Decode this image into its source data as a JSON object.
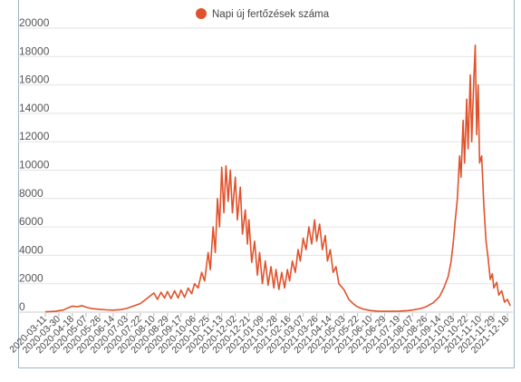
{
  "chart_data": {
    "type": "line",
    "legend": {
      "label": "Napi új fertőzések száma",
      "placement": "top-center"
    },
    "colors": {
      "series": "#e0522c",
      "grid": "#e3e3e3",
      "axis": "#cccccc"
    },
    "ylim": [
      0,
      20000
    ],
    "yticks": [
      0,
      2000,
      4000,
      6000,
      8000,
      10000,
      12000,
      14000,
      16000,
      18000,
      20000
    ],
    "yticks_labels": [
      "0",
      "2000",
      "4000",
      "6000",
      "8000",
      "10000",
      "12000",
      "14000",
      "16000",
      "18000",
      "20000"
    ],
    "grid": true,
    "xticks": [
      "2020-03-11",
      "2020-03-30",
      "2020-04-18",
      "2020-05-07",
      "2020-05-26",
      "2020-06-14",
      "2020-07-03",
      "2020-07-22",
      "2020-08-10",
      "2020-08-29",
      "2020-09-17",
      "2020-10-06",
      "2020-10-25",
      "2020-11-13",
      "2020-12-02",
      "2020-12-21",
      "2021-01-09",
      "2021-01-28",
      "2021-02-16",
      "2021-03-07",
      "2021-03-26",
      "2021-04-14",
      "2021-05-03",
      "2021-05-22",
      "2021-06-10",
      "2021-06-29",
      "2021-07-19",
      "2021-08-07",
      "2021-08-26",
      "2021-09-14",
      "2021-10-03",
      "2021-10-22",
      "2021-11-10",
      "2021-11-29",
      "2021-12-18"
    ],
    "series": [
      {
        "name": "Napi új fertőzések száma",
        "points": [
          [
            "2020-03-11",
            20
          ],
          [
            "2020-03-25",
            60
          ],
          [
            "2020-04-05",
            150
          ],
          [
            "2020-04-12",
            300
          ],
          [
            "2020-04-18",
            420
          ],
          [
            "2020-04-25",
            380
          ],
          [
            "2020-05-01",
            460
          ],
          [
            "2020-05-07",
            350
          ],
          [
            "2020-05-15",
            250
          ],
          [
            "2020-05-26",
            200
          ],
          [
            "2020-06-05",
            160
          ],
          [
            "2020-06-14",
            140
          ],
          [
            "2020-06-25",
            180
          ],
          [
            "2020-07-03",
            260
          ],
          [
            "2020-07-12",
            420
          ],
          [
            "2020-07-22",
            600
          ],
          [
            "2020-07-30",
            900
          ],
          [
            "2020-08-05",
            1150
          ],
          [
            "2020-08-10",
            1350
          ],
          [
            "2020-08-15",
            900
          ],
          [
            "2020-08-20",
            1400
          ],
          [
            "2020-08-25",
            1000
          ],
          [
            "2020-08-29",
            1450
          ],
          [
            "2020-09-03",
            950
          ],
          [
            "2020-09-08",
            1500
          ],
          [
            "2020-09-13",
            1000
          ],
          [
            "2020-09-17",
            1550
          ],
          [
            "2020-09-22",
            1050
          ],
          [
            "2020-09-27",
            1700
          ],
          [
            "2020-10-02",
            1300
          ],
          [
            "2020-10-06",
            2000
          ],
          [
            "2020-10-11",
            1700
          ],
          [
            "2020-10-16",
            2800
          ],
          [
            "2020-10-20",
            2200
          ],
          [
            "2020-10-25",
            4200
          ],
          [
            "2020-10-28",
            3000
          ],
          [
            "2020-11-01",
            6000
          ],
          [
            "2020-11-04",
            4200
          ],
          [
            "2020-11-07",
            8000
          ],
          [
            "2020-11-10",
            6000
          ],
          [
            "2020-11-13",
            10200
          ],
          [
            "2020-11-16",
            7000
          ],
          [
            "2020-11-19",
            10300
          ],
          [
            "2020-11-22",
            7800
          ],
          [
            "2020-11-25",
            10000
          ],
          [
            "2020-11-28",
            7000
          ],
          [
            "2020-12-02",
            9500
          ],
          [
            "2020-12-05",
            6500
          ],
          [
            "2020-12-09",
            8800
          ],
          [
            "2020-12-12",
            5500
          ],
          [
            "2020-12-16",
            7200
          ],
          [
            "2020-12-19",
            4800
          ],
          [
            "2020-12-21",
            6500
          ],
          [
            "2020-12-25",
            3500
          ],
          [
            "2020-12-29",
            5000
          ],
          [
            "2021-01-02",
            2600
          ],
          [
            "2021-01-05",
            4200
          ],
          [
            "2021-01-09",
            2000
          ],
          [
            "2021-01-13",
            3600
          ],
          [
            "2021-01-17",
            1900
          ],
          [
            "2021-01-21",
            3200
          ],
          [
            "2021-01-25",
            1700
          ],
          [
            "2021-01-28",
            3000
          ],
          [
            "2021-02-01",
            1600
          ],
          [
            "2021-02-05",
            2800
          ],
          [
            "2021-02-09",
            1700
          ],
          [
            "2021-02-13",
            3000
          ],
          [
            "2021-02-16",
            2200
          ],
          [
            "2021-02-20",
            3600
          ],
          [
            "2021-02-24",
            2800
          ],
          [
            "2021-02-28",
            4400
          ],
          [
            "2021-03-03",
            3600
          ],
          [
            "2021-03-07",
            5200
          ],
          [
            "2021-03-11",
            4400
          ],
          [
            "2021-03-15",
            6000
          ],
          [
            "2021-03-19",
            4800
          ],
          [
            "2021-03-23",
            6500
          ],
          [
            "2021-03-26",
            5000
          ],
          [
            "2021-03-30",
            6200
          ],
          [
            "2021-04-03",
            4400
          ],
          [
            "2021-04-07",
            5400
          ],
          [
            "2021-04-10",
            3600
          ],
          [
            "2021-04-14",
            4400
          ],
          [
            "2021-04-18",
            2800
          ],
          [
            "2021-04-22",
            3200
          ],
          [
            "2021-04-26",
            2000
          ],
          [
            "2021-05-03",
            1600
          ],
          [
            "2021-05-10",
            900
          ],
          [
            "2021-05-16",
            600
          ],
          [
            "2021-05-22",
            380
          ],
          [
            "2021-05-30",
            220
          ],
          [
            "2021-06-10",
            110
          ],
          [
            "2021-06-20",
            70
          ],
          [
            "2021-06-29",
            60
          ],
          [
            "2021-07-10",
            60
          ],
          [
            "2021-07-19",
            70
          ],
          [
            "2021-08-01",
            110
          ],
          [
            "2021-08-07",
            150
          ],
          [
            "2021-08-18",
            250
          ],
          [
            "2021-08-26",
            380
          ],
          [
            "2021-09-05",
            650
          ],
          [
            "2021-09-14",
            1100
          ],
          [
            "2021-09-20",
            1700
          ],
          [
            "2021-09-26",
            2500
          ],
          [
            "2021-09-30",
            3500
          ],
          [
            "2021-10-03",
            4800
          ],
          [
            "2021-10-06",
            6500
          ],
          [
            "2021-10-09",
            8000
          ],
          [
            "2021-10-12",
            11000
          ],
          [
            "2021-10-14",
            9500
          ],
          [
            "2021-10-17",
            13500
          ],
          [
            "2021-10-19",
            10500
          ],
          [
            "2021-10-22",
            15000
          ],
          [
            "2021-10-24",
            11500
          ],
          [
            "2021-10-27",
            16700
          ],
          [
            "2021-10-29",
            12000
          ],
          [
            "2021-11-01",
            16500
          ],
          [
            "2021-11-03",
            18800
          ],
          [
            "2021-11-05",
            12500
          ],
          [
            "2021-11-07",
            16000
          ],
          [
            "2021-11-09",
            10500
          ],
          [
            "2021-11-12",
            11000
          ],
          [
            "2021-11-15",
            7500
          ],
          [
            "2021-11-18",
            5000
          ],
          [
            "2021-11-21",
            3800
          ],
          [
            "2021-11-24",
            2300
          ],
          [
            "2021-11-27",
            2700
          ],
          [
            "2021-11-29",
            1700
          ],
          [
            "2021-12-03",
            2100
          ],
          [
            "2021-12-06",
            1200
          ],
          [
            "2021-12-10",
            1500
          ],
          [
            "2021-12-14",
            700
          ],
          [
            "2021-12-18",
            900
          ],
          [
            "2021-12-22",
            450
          ]
        ]
      }
    ]
  }
}
